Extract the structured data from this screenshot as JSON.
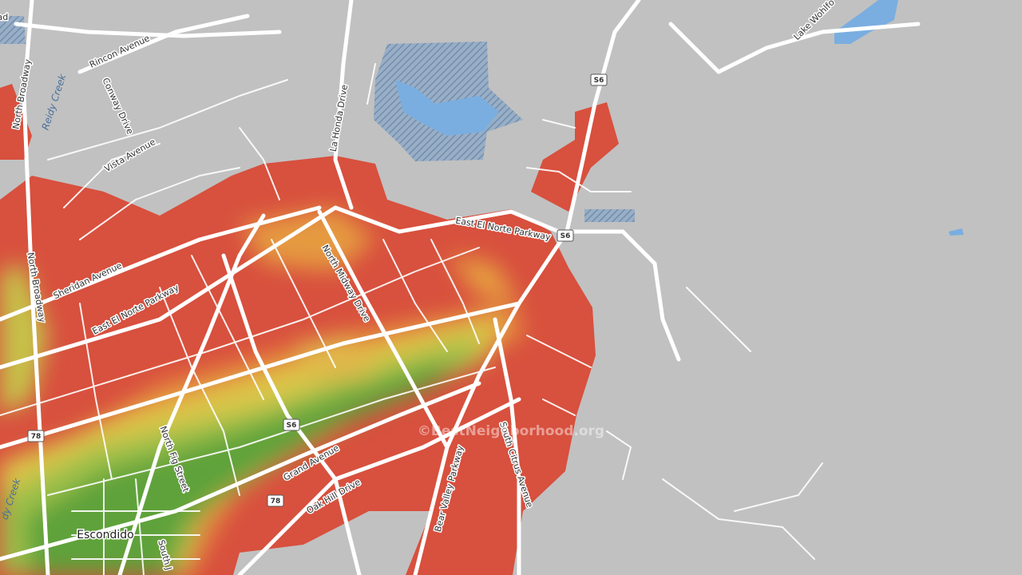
{
  "map": {
    "streets": [
      "oad",
      "Rincon Avenue",
      "North Broadway",
      "Reidy Creek",
      "Conway Drive",
      "Vista Avenue",
      "La Honda Drive",
      "Lake Wohlfo",
      "East El Norte Parkway",
      "North Midway Drive",
      "Sheridan Avenue",
      "North Broadway",
      "East El Norte Parkway",
      "North Fig Street",
      "Grand Avenue",
      "Oak Hill Drive",
      "Bear Valley Parkway",
      "South Citrus Avenue",
      "dy Creek",
      "South J"
    ],
    "shields": [
      "S6",
      "S6",
      "S6",
      "78",
      "78"
    ],
    "place": "Escondido",
    "watermark": "©BestNeighborhood.org"
  }
}
